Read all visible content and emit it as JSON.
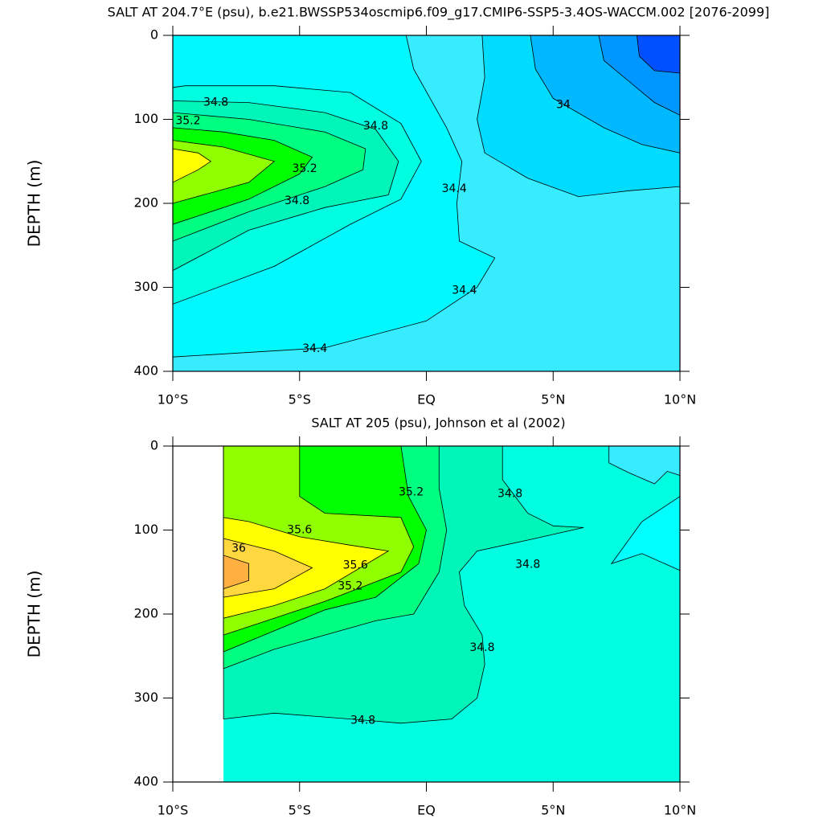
{
  "chart_data": [
    {
      "type": "contour",
      "title": "SALT AT 204.7°E (psu), b.e21.BWSSP534oscmip6.f09_g17.CMIP6-SSP5-3.4OS-WACCM.002 [2076-2099]",
      "ylabel": "DEPTH (m)",
      "y_inverted": true,
      "xlim": [
        -10,
        10
      ],
      "ylim": [
        0,
        400
      ],
      "xticks": [
        {
          "value": -10,
          "label": "10°S"
        },
        {
          "value": -5,
          "label": "5°S"
        },
        {
          "value": 0,
          "label": "EQ"
        },
        {
          "value": 5,
          "label": "5°N"
        },
        {
          "value": 10,
          "label": "10°N"
        }
      ],
      "yticks": [
        0,
        100,
        200,
        300,
        400
      ],
      "background": "#38ecff",
      "regions": [
        {
          "level": 34.4,
          "color": "#00f8ff",
          "points": [
            [
              -10,
              383
            ],
            [
              -4,
              372
            ],
            [
              0,
              340
            ],
            [
              2,
              300
            ],
            [
              2.7,
              265
            ],
            [
              2,
              255
            ],
            [
              1.3,
              245
            ],
            [
              1.2,
              200
            ],
            [
              1.4,
              150
            ],
            [
              0.8,
              110
            ],
            [
              -0.5,
              40
            ],
            [
              -0.8,
              0
            ],
            [
              -10,
              0
            ]
          ]
        },
        {
          "level": 34.6,
          "color": "#00ffe0",
          "points": [
            [
              -10,
              320
            ],
            [
              -6,
              275
            ],
            [
              -3,
              225
            ],
            [
              -1,
              195
            ],
            [
              -0.2,
              150
            ],
            [
              -1,
              105
            ],
            [
              -3,
              68
            ],
            [
              -6,
              60
            ],
            [
              -9.5,
              60
            ],
            [
              -10,
              62
            ]
          ]
        },
        {
          "level": 34.8,
          "color": "#00f5b8",
          "points": [
            [
              -10,
              280
            ],
            [
              -7,
              232
            ],
            [
              -4,
              205
            ],
            [
              -1.5,
              190
            ],
            [
              -1.1,
              150
            ],
            [
              -2,
              112
            ],
            [
              -4,
              92
            ],
            [
              -7,
              80
            ],
            [
              -10,
              78
            ]
          ]
        },
        {
          "level": 35.0,
          "color": "#00ff80",
          "points": [
            [
              -10,
              245
            ],
            [
              -7,
              210
            ],
            [
              -4,
              180
            ],
            [
              -2.5,
              160
            ],
            [
              -2.4,
              135
            ],
            [
              -4,
              115
            ],
            [
              -7,
              100
            ],
            [
              -10,
              92
            ]
          ]
        },
        {
          "level": 35.2,
          "color": "#00ff00",
          "points": [
            [
              -10,
              225
            ],
            [
              -7,
              195
            ],
            [
              -5,
              165
            ],
            [
              -4.5,
              145
            ],
            [
              -6,
              125
            ],
            [
              -8,
              115
            ],
            [
              -10,
              110
            ]
          ]
        },
        {
          "level": 35.4,
          "color": "#90ff00",
          "points": [
            [
              -10,
              200
            ],
            [
              -7,
              175
            ],
            [
              -6,
              150
            ],
            [
              -8,
              133
            ],
            [
              -10,
              125
            ]
          ]
        },
        {
          "level": 35.6,
          "color": "#ffff00",
          "points": [
            [
              -10,
              175
            ],
            [
              -9,
              160
            ],
            [
              -8.5,
              150
            ],
            [
              -9,
              140
            ],
            [
              -10,
              135
            ]
          ]
        },
        {
          "level": 34.2,
          "color": "#00dcff",
          "points": [
            [
              2.2,
              0
            ],
            [
              2.3,
              50
            ],
            [
              2.0,
              100
            ],
            [
              2.3,
              140
            ],
            [
              4,
              170
            ],
            [
              6,
              192
            ],
            [
              8,
              185
            ],
            [
              10,
              180
            ],
            [
              10,
              0
            ]
          ]
        },
        {
          "level": 34.0,
          "color": "#00b8ff",
          "points": [
            [
              4.1,
              0
            ],
            [
              4.3,
              40
            ],
            [
              5,
              75
            ],
            [
              7,
              110
            ],
            [
              8.5,
              130
            ],
            [
              10,
              140
            ],
            [
              10,
              0
            ]
          ]
        },
        {
          "level": 33.8,
          "color": "#0096ff",
          "points": [
            [
              6.8,
              0
            ],
            [
              7.0,
              30
            ],
            [
              8,
              55
            ],
            [
              9,
              80
            ],
            [
              10,
              95
            ],
            [
              10,
              0
            ]
          ]
        },
        {
          "level": 33.6,
          "color": "#0050ff",
          "points": [
            [
              8.3,
              0
            ],
            [
              8.4,
              25
            ],
            [
              9,
              42
            ],
            [
              10,
              45
            ],
            [
              10,
              0
            ]
          ]
        }
      ],
      "contour_labels": [
        {
          "x": -8.3,
          "y": 80,
          "value": 34.8
        },
        {
          "x": -9.4,
          "y": 102,
          "value": 35.2
        },
        {
          "x": -2.0,
          "y": 108,
          "value": 34.8
        },
        {
          "x": -4.8,
          "y": 159,
          "value": 35.2
        },
        {
          "x": -5.1,
          "y": 197,
          "value": 34.8
        },
        {
          "x": 1.1,
          "y": 183,
          "value": 34.4
        },
        {
          "x": 1.5,
          "y": 304,
          "value": 34.4
        },
        {
          "x": -4.4,
          "y": 373,
          "value": 34.4
        },
        {
          "x": 5.4,
          "y": 83,
          "value": 34
        }
      ]
    },
    {
      "type": "contour",
      "title": "SALT AT 205 (psu), Johnson et al (2002)",
      "ylabel": "DEPTH (m)",
      "y_inverted": true,
      "xlim": [
        -10,
        10
      ],
      "ylim": [
        0,
        400
      ],
      "xticks": [
        {
          "value": -10,
          "label": "10°S"
        },
        {
          "value": -5,
          "label": "5°S"
        },
        {
          "value": 0,
          "label": "EQ"
        },
        {
          "value": 5,
          "label": "5°N"
        },
        {
          "value": 10,
          "label": "10°N"
        }
      ],
      "yticks": [
        0,
        100,
        200,
        300,
        400
      ],
      "data_xlim": [
        -8,
        10
      ],
      "background": "#00ffe0",
      "regions": [
        {
          "level": 34.8,
          "color": "#00f5b8",
          "points": [
            [
              -8,
              325
            ],
            [
              -6,
              318
            ],
            [
              -3,
              325
            ],
            [
              -1,
              330
            ],
            [
              1,
              325
            ],
            [
              2,
              300
            ],
            [
              2.3,
              260
            ],
            [
              2.2,
              225
            ],
            [
              1.5,
              190
            ],
            [
              1.3,
              150
            ],
            [
              2,
              125
            ],
            [
              4,
              112
            ],
            [
              6.2,
              97
            ],
            [
              5,
              95
            ],
            [
              4,
              80
            ],
            [
              3,
              40
            ],
            [
              3,
              0
            ],
            [
              -8,
              0
            ]
          ]
        },
        {
          "level": 34.6,
          "color": "#00ffff",
          "points": [
            [
              10,
              60
            ],
            [
              8.5,
              90
            ],
            [
              7.3,
              140
            ],
            [
              8.5,
              128
            ],
            [
              10,
              148
            ]
          ]
        },
        {
          "level": 34.4,
          "color": "#38ecff",
          "points": [
            [
              7.2,
              0
            ],
            [
              7.2,
              20
            ],
            [
              8,
              32
            ],
            [
              9,
              45
            ],
            [
              9.5,
              30
            ],
            [
              10,
              35
            ],
            [
              10,
              0
            ]
          ]
        },
        {
          "level": 35.0,
          "color": "#00ff80",
          "points": [
            [
              -8,
              265
            ],
            [
              -6,
              242
            ],
            [
              -4,
              225
            ],
            [
              -2,
              208
            ],
            [
              -0.5,
              200
            ],
            [
              0.5,
              150
            ],
            [
              0.8,
              100
            ],
            [
              0.5,
              50
            ],
            [
              0.5,
              0
            ],
            [
              -8,
              0
            ]
          ]
        },
        {
          "level": 35.2,
          "color": "#00ff00",
          "points": [
            [
              -8,
              245
            ],
            [
              -6,
              220
            ],
            [
              -4,
              195
            ],
            [
              -2,
              180
            ],
            [
              -0.3,
              140
            ],
            [
              0,
              100
            ],
            [
              -0.7,
              60
            ],
            [
              -1,
              0
            ],
            [
              -8,
              0
            ]
          ]
        },
        {
          "level": 35.4,
          "color": "#90ff00",
          "points": [
            [
              -8,
              225
            ],
            [
              -6,
              205
            ],
            [
              -4,
              185
            ],
            [
              -1,
              150
            ],
            [
              -0.5,
              120
            ],
            [
              -1,
              85
            ],
            [
              -4,
              80
            ],
            [
              -5,
              60
            ],
            [
              -5,
              0
            ],
            [
              -8,
              0
            ]
          ]
        },
        {
          "level": 35.6,
          "color": "#ffff00",
          "points": [
            [
              -8,
              205
            ],
            [
              -6,
              190
            ],
            [
              -4,
              170
            ],
            [
              -1.5,
              125
            ],
            [
              -3,
              118
            ],
            [
              -5,
              108
            ],
            [
              -7,
              90
            ],
            [
              -8,
              85
            ]
          ]
        },
        {
          "level": 35.8,
          "color": "#ffd840",
          "points": [
            [
              -8,
              180
            ],
            [
              -6,
              170
            ],
            [
              -4.5,
              145
            ],
            [
              -6,
              125
            ],
            [
              -8,
              110
            ]
          ]
        },
        {
          "level": 36,
          "color": "#ffb040",
          "points": [
            [
              -8,
              170
            ],
            [
              -7,
              160
            ],
            [
              -7,
              140
            ],
            [
              -8,
              130
            ]
          ]
        }
      ],
      "contour_labels": [
        {
          "x": -0.6,
          "y": 55,
          "value": 35.2
        },
        {
          "x": 3.3,
          "y": 57,
          "value": 34.8
        },
        {
          "x": -5.0,
          "y": 100,
          "value": 35.6
        },
        {
          "x": -7.4,
          "y": 122,
          "value": 36
        },
        {
          "x": -2.8,
          "y": 142,
          "value": 35.6
        },
        {
          "x": -3.0,
          "y": 167,
          "value": 35.2
        },
        {
          "x": 4.0,
          "y": 141,
          "value": 34.8
        },
        {
          "x": 2.2,
          "y": 240,
          "value": 34.8
        },
        {
          "x": -2.5,
          "y": 327,
          "value": 34.8
        }
      ]
    }
  ]
}
